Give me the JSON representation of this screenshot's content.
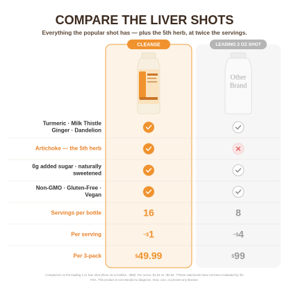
{
  "header": {
    "title": "COMPARE THE LIVER SHOTS",
    "subtitle": "Everything the popular shot has — plus the 5th herb, at twice the servings."
  },
  "columns": {
    "cleanse": "CLEANSE",
    "other": "LEADING 2 OZ SHOT"
  },
  "other_bottle_label": [
    "Other",
    "Brand"
  ],
  "rows": [
    {
      "label": [
        "Turmeric · Milk Thistle",
        "Ginger · Dandelion"
      ],
      "highlight": false,
      "cleanse": {
        "check": true
      },
      "other": {
        "check": true
      }
    },
    {
      "label": [
        "Artichoke — the 5th herb"
      ],
      "highlight": true,
      "cleanse": {
        "check": true
      },
      "other": {
        "check": false
      }
    },
    {
      "label": [
        "0g added sugar · naturally",
        "sweetened"
      ],
      "highlight": false,
      "cleanse": {
        "check": true
      },
      "other": {
        "check": true
      }
    },
    {
      "label": [
        "Non-GMO · Gluten-Free ·",
        "Vegan"
      ],
      "highlight": false,
      "cleanse": {
        "check": true
      },
      "other": {
        "check": true
      }
    },
    {
      "label": [
        "Servings per bottle"
      ],
      "highlight": true,
      "cleanse": {
        "text": "16"
      },
      "other": {
        "text": "8"
      }
    },
    {
      "label": [
        "Per serving"
      ],
      "highlight": true,
      "cleanse": {
        "prefix": "~$",
        "text": "1"
      },
      "other": {
        "prefix": "~$",
        "text": "4"
      }
    },
    {
      "label": [
        "Per 3-pack"
      ],
      "highlight": true,
      "cleanse": {
        "prefix": "$",
        "text": "49.99"
      },
      "other": {
        "prefix": "$",
        "text": "99"
      }
    }
  ],
  "footnote": [
    "Comparison vs the leading 2 oz liver shot (three 16 oz bottles, ~$99). Per ounce: $1.04 vs ~$2.06. †These statements have not been evaluated by the",
    "FDA. This product is not intended to diagnose, treat, cure, or prevent any disease."
  ]
}
